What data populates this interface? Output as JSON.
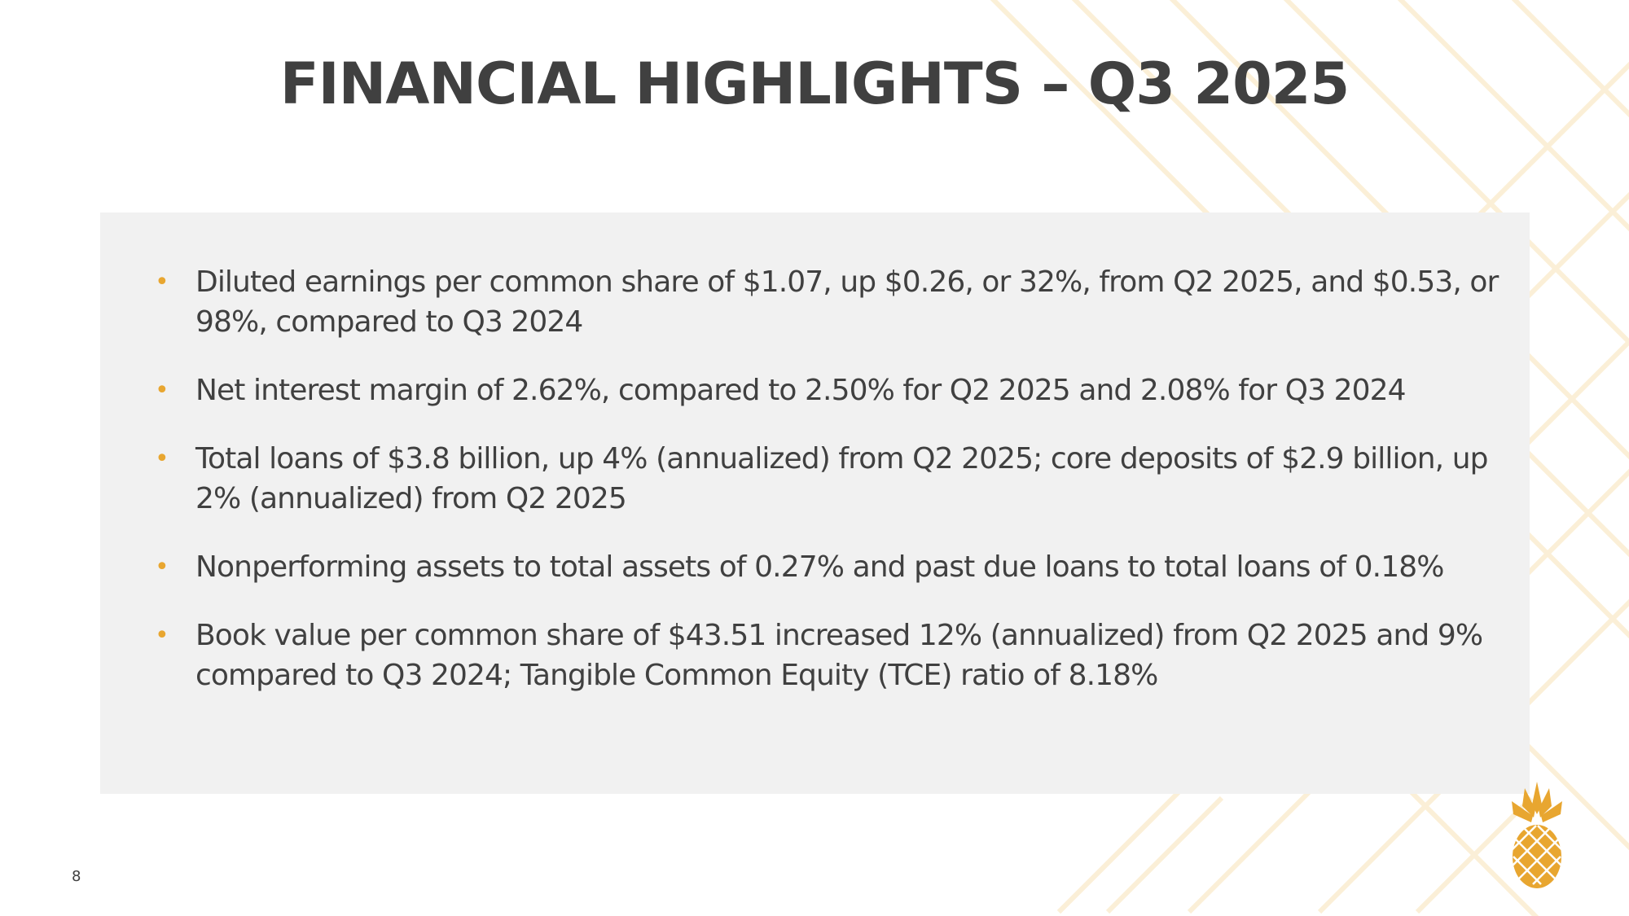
{
  "slide": {
    "title": "FINANCIAL HIGHLIGHTS – Q3 2025",
    "page_number": "8",
    "bullets": [
      "Diluted earnings per common share of $1.07, up $0.26, or 32%, from Q2 2025, and $0.53, or 98%, compared to Q3 2024",
      "Net interest margin of 2.62%, compared to 2.50% for Q2 2025 and 2.08% for Q3 2024",
      "Total loans of $3.8 billion, up 4% (annualized) from Q2 2025; core deposits of $2.9 billion, up 2% (annualized) from Q2 2025",
      "Nonperforming assets to total assets of 0.27% and past due loans to total loans of 0.18%",
      "Book value per common share of $43.51 increased 12% (annualized) from Q2 2025 and 9% compared to Q3 2024; Tangible Common Equity (TCE) ratio of 8.18%"
    ],
    "bullet_glyph": "•"
  },
  "logo": {
    "icon": "pineapple-icon"
  },
  "colors": {
    "title_text": "#404040",
    "body_text": "#404040",
    "bullet_accent": "#e8a630",
    "content_box_bg": "#f1f1f1",
    "pattern_lines": "#fbeed3",
    "logo_gold": "#e8a630"
  }
}
